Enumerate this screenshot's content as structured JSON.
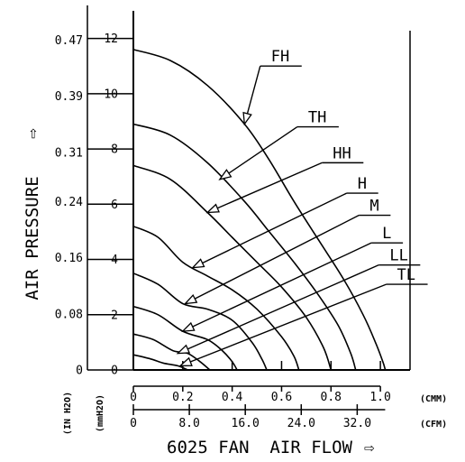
{
  "chart_data": {
    "type": "line",
    "title": "",
    "xlabel": "6025 FAN  AIR FLOW",
    "xlabel_arrow": "⇨",
    "ylabel": "AIR PRESSURE",
    "ylabel_arrow": "⇨",
    "x_units_primary": "(CMM)",
    "x_units_secondary": "(CFM)",
    "y_units_primary": "(mmH2O)",
    "y_units_secondary": "(IN H2O)",
    "xlim": [
      0,
      1.12
    ],
    "ylim": [
      0,
      13
    ],
    "x_ticks": [
      {
        "value": 0,
        "label": "0"
      },
      {
        "value": 0.2,
        "label": "0.2"
      },
      {
        "value": 0.4,
        "label": "0.4"
      },
      {
        "value": 0.6,
        "label": "0.6"
      },
      {
        "value": 0.8,
        "label": "0.8"
      },
      {
        "value": 1.0,
        "label": "1.0"
      }
    ],
    "x_ticks_secondary": [
      {
        "value": 0,
        "label": "0"
      },
      {
        "value": 8.0,
        "label": "8.0"
      },
      {
        "value": 16.0,
        "label": "16.0"
      },
      {
        "value": 24.0,
        "label": "24.0"
      },
      {
        "value": 32.0,
        "label": "32.0"
      }
    ],
    "cfm_per_cmm": 35.315,
    "y_ticks": [
      {
        "value": 0,
        "label": "0"
      },
      {
        "value": 2,
        "label": "2"
      },
      {
        "value": 4,
        "label": "4"
      },
      {
        "value": 6,
        "label": "6"
      },
      {
        "value": 8,
        "label": "8"
      },
      {
        "value": 10,
        "label": "10"
      },
      {
        "value": 12,
        "label": "12"
      }
    ],
    "y_ticks_secondary": [
      {
        "value": 0,
        "label": "0"
      },
      {
        "value": 0.08,
        "label": "0.08"
      },
      {
        "value": 0.16,
        "label": "0.16"
      },
      {
        "value": 0.24,
        "label": "0.24"
      },
      {
        "value": 0.31,
        "label": "0.31"
      },
      {
        "value": 0.39,
        "label": "0.39"
      },
      {
        "value": 0.47,
        "label": "0.47"
      }
    ],
    "inh2o_per_mmh2o": 0.03937,
    "grid": false,
    "legend": "none",
    "series": [
      {
        "name": "FH",
        "x": [
          0,
          0.15,
          0.3,
          0.45,
          0.55,
          0.65,
          0.75,
          0.85,
          0.93,
          0.98,
          1.01,
          1.02
        ],
        "y": [
          11.6,
          11.2,
          10.3,
          8.9,
          7.6,
          6.1,
          4.7,
          3.3,
          2.0,
          1.0,
          0.3,
          0
        ]
      },
      {
        "name": "TH",
        "x": [
          0,
          0.15,
          0.3,
          0.45,
          0.55,
          0.65,
          0.75,
          0.83,
          0.88,
          0.9
        ],
        "y": [
          8.9,
          8.5,
          7.5,
          6.1,
          5.0,
          3.9,
          2.7,
          1.6,
          0.6,
          0
        ]
      },
      {
        "name": "HH",
        "x": [
          0,
          0.15,
          0.3,
          0.4,
          0.5,
          0.6,
          0.7,
          0.77,
          0.8
        ],
        "y": [
          7.4,
          6.9,
          5.7,
          4.8,
          3.9,
          3.0,
          1.9,
          0.8,
          0
        ]
      },
      {
        "name": "H",
        "x": [
          0,
          0.1,
          0.2,
          0.3,
          0.4,
          0.5,
          0.6,
          0.65,
          0.67
        ],
        "y": [
          5.2,
          4.8,
          3.9,
          3.4,
          2.9,
          2.2,
          1.2,
          0.5,
          0
        ]
      },
      {
        "name": "M",
        "x": [
          0,
          0.1,
          0.2,
          0.3,
          0.4,
          0.48,
          0.52,
          0.54
        ],
        "y": [
          3.5,
          3.1,
          2.4,
          2.2,
          1.8,
          1.0,
          0.4,
          0
        ]
      },
      {
        "name": "L",
        "x": [
          0,
          0.1,
          0.2,
          0.3,
          0.36,
          0.4,
          0.42
        ],
        "y": [
          2.3,
          2.0,
          1.4,
          1.1,
          0.7,
          0.3,
          0
        ]
      },
      {
        "name": "LL",
        "x": [
          0,
          0.08,
          0.16,
          0.22,
          0.27,
          0.31
        ],
        "y": [
          1.3,
          1.1,
          0.7,
          0.6,
          0.3,
          0
        ]
      },
      {
        "name": "TL",
        "x": [
          0,
          0.07,
          0.12,
          0.18,
          0.22
        ],
        "y": [
          0.55,
          0.4,
          0.25,
          0.15,
          0
        ]
      }
    ],
    "annotations": [
      {
        "text": "FH",
        "points_to": [
          0.45,
          8.9
        ],
        "label_at": [
          0.55,
          11.0
        ]
      },
      {
        "text": "TH",
        "points_to": [
          0.35,
          6.9
        ],
        "label_at": [
          0.7,
          8.8
        ]
      },
      {
        "text": "HH",
        "points_to": [
          0.3,
          5.7
        ],
        "label_at": [
          0.8,
          7.5
        ]
      },
      {
        "text": "H",
        "points_to": [
          0.24,
          3.7
        ],
        "label_at": [
          0.9,
          6.4
        ]
      },
      {
        "text": "M",
        "points_to": [
          0.21,
          2.4
        ],
        "label_at": [
          0.95,
          5.6
        ]
      },
      {
        "text": "L",
        "points_to": [
          0.2,
          1.4
        ],
        "label_at": [
          1.0,
          4.6
        ]
      },
      {
        "text": "LL",
        "points_to": [
          0.18,
          0.6
        ],
        "label_at": [
          1.03,
          3.8
        ]
      },
      {
        "text": "TL",
        "points_to": [
          0.19,
          0.15
        ],
        "label_at": [
          1.06,
          3.1
        ]
      }
    ]
  }
}
